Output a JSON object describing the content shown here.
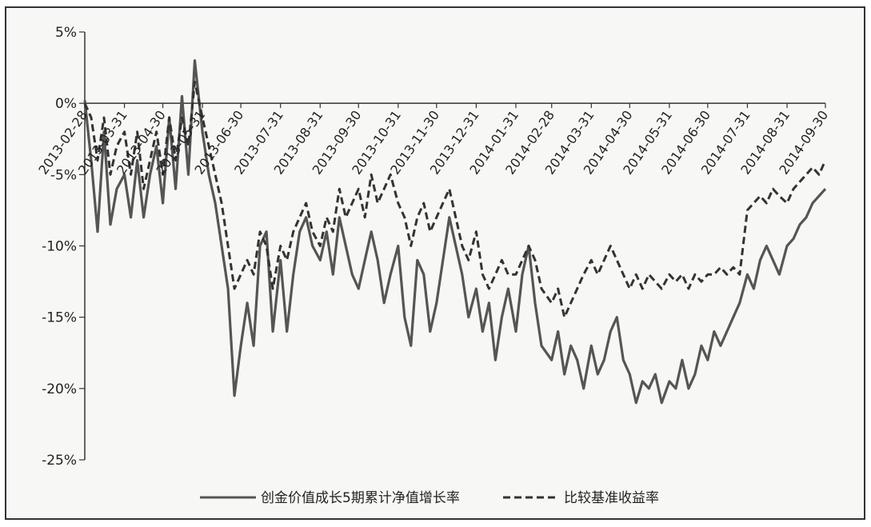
{
  "chart_data": {
    "type": "line",
    "title": "",
    "xlabel": "",
    "ylabel": "",
    "ylim": [
      -25,
      5
    ],
    "yticks": [
      "5%",
      "0%",
      "-5%",
      "-10%",
      "-15%",
      "-20%",
      "-25%"
    ],
    "ytick_values": [
      5,
      0,
      -5,
      -10,
      -15,
      -20,
      -25
    ],
    "xticks": [
      "2013-02-28",
      "2013-03-31",
      "2013-04-30",
      "2013-05-31",
      "2013-06-30",
      "2013-07-31",
      "2013-08-31",
      "2013-09-30",
      "2013-10-31",
      "2013-11-30",
      "2013-12-31",
      "2014-01-31",
      "2014-02-28",
      "2014-03-31",
      "2014-04-30",
      "2014-05-31",
      "2014-06-30",
      "2014-07-31",
      "2014-08-31",
      "2014-09-30"
    ],
    "grid": false,
    "legend_position": "bottom",
    "series": [
      {
        "name": "创金价值成长5期累计净值增长率",
        "style": "solid",
        "color": "#555555",
        "x": [
          "2013-02-28",
          "2013-03-05",
          "2013-03-10",
          "2013-03-15",
          "2013-03-20",
          "2013-03-25",
          "2013-03-31",
          "2013-04-05",
          "2013-04-10",
          "2013-04-15",
          "2013-04-20",
          "2013-04-25",
          "2013-04-30",
          "2013-05-05",
          "2013-05-10",
          "2013-05-15",
          "2013-05-20",
          "2013-05-25",
          "2013-05-31",
          "2013-06-05",
          "2013-06-10",
          "2013-06-15",
          "2013-06-20",
          "2013-06-25",
          "2013-06-30",
          "2013-07-05",
          "2013-07-10",
          "2013-07-15",
          "2013-07-20",
          "2013-07-25",
          "2013-07-31",
          "2013-08-05",
          "2013-08-10",
          "2013-08-15",
          "2013-08-20",
          "2013-08-25",
          "2013-08-31",
          "2013-09-05",
          "2013-09-10",
          "2013-09-15",
          "2013-09-20",
          "2013-09-25",
          "2013-09-30",
          "2013-10-05",
          "2013-10-10",
          "2013-10-15",
          "2013-10-20",
          "2013-10-25",
          "2013-10-31",
          "2013-11-05",
          "2013-11-10",
          "2013-11-15",
          "2013-11-20",
          "2013-11-25",
          "2013-11-30",
          "2013-12-05",
          "2013-12-10",
          "2013-12-15",
          "2013-12-20",
          "2013-12-25",
          "2013-12-31",
          "2014-01-05",
          "2014-01-10",
          "2014-01-15",
          "2014-01-20",
          "2014-01-25",
          "2014-01-31",
          "2014-02-05",
          "2014-02-10",
          "2014-02-15",
          "2014-02-20",
          "2014-02-28",
          "2014-03-05",
          "2014-03-10",
          "2014-03-15",
          "2014-03-20",
          "2014-03-25",
          "2014-03-31",
          "2014-04-05",
          "2014-04-10",
          "2014-04-15",
          "2014-04-20",
          "2014-04-25",
          "2014-04-30",
          "2014-05-05",
          "2014-05-10",
          "2014-05-15",
          "2014-05-20",
          "2014-05-25",
          "2014-05-31",
          "2014-06-05",
          "2014-06-10",
          "2014-06-15",
          "2014-06-20",
          "2014-06-25",
          "2014-06-30",
          "2014-07-05",
          "2014-07-10",
          "2014-07-15",
          "2014-07-20",
          "2014-07-25",
          "2014-07-31",
          "2014-08-05",
          "2014-08-10",
          "2014-08-15",
          "2014-08-20",
          "2014-08-25",
          "2014-08-31",
          "2014-09-05",
          "2014-09-10",
          "2014-09-15",
          "2014-09-20",
          "2014-09-25",
          "2014-09-30"
        ],
        "values": [
          0.2,
          -4.0,
          -9.0,
          -2.0,
          -8.5,
          -6.0,
          -5.0,
          -8.0,
          -4.0,
          -8.0,
          -5.0,
          -3.0,
          -7.0,
          -1.0,
          -6.0,
          0.5,
          -5.0,
          3.0,
          -2.0,
          -5.0,
          -7.0,
          -10.0,
          -13.0,
          -20.5,
          -17.0,
          -14.0,
          -17.0,
          -10.0,
          -9.0,
          -16.0,
          -11.0,
          -16.0,
          -12.0,
          -9.0,
          -8.0,
          -10.0,
          -11.0,
          -9.0,
          -12.0,
          -8.0,
          -10.0,
          -12.0,
          -13.0,
          -11.0,
          -9.0,
          -11.0,
          -14.0,
          -12.0,
          -10.0,
          -15.0,
          -17.0,
          -11.0,
          -12.0,
          -16.0,
          -14.0,
          -11.0,
          -8.0,
          -10.0,
          -12.0,
          -15.0,
          -13.0,
          -16.0,
          -14.0,
          -18.0,
          -15.0,
          -13.0,
          -16.0,
          -12.0,
          -10.0,
          -14.0,
          -17.0,
          -18.0,
          -16.0,
          -19.0,
          -17.0,
          -18.0,
          -20.0,
          -17.0,
          -19.0,
          -18.0,
          -16.0,
          -15.0,
          -18.0,
          -19.0,
          -21.0,
          -19.5,
          -20.0,
          -19.0,
          -21.0,
          -19.5,
          -20.0,
          -18.0,
          -20.0,
          -19.0,
          -17.0,
          -18.0,
          -16.0,
          -17.0,
          -16.0,
          -15.0,
          -14.0,
          -12.0,
          -13.0,
          -11.0,
          -10.0,
          -11.0,
          -12.0,
          -10.0,
          -9.5,
          -8.5,
          -8.0,
          -7.0,
          -6.5,
          -6.0
        ]
      },
      {
        "name": "比较基准收益率",
        "style": "dashed",
        "color": "#333333",
        "x": [
          "2013-02-28",
          "2013-03-05",
          "2013-03-10",
          "2013-03-15",
          "2013-03-20",
          "2013-03-25",
          "2013-03-31",
          "2013-04-05",
          "2013-04-10",
          "2013-04-15",
          "2013-04-20",
          "2013-04-25",
          "2013-04-30",
          "2013-05-05",
          "2013-05-10",
          "2013-05-15",
          "2013-05-20",
          "2013-05-25",
          "2013-05-31",
          "2013-06-05",
          "2013-06-10",
          "2013-06-15",
          "2013-06-20",
          "2013-06-25",
          "2013-06-30",
          "2013-07-05",
          "2013-07-10",
          "2013-07-15",
          "2013-07-20",
          "2013-07-25",
          "2013-07-31",
          "2013-08-05",
          "2013-08-10",
          "2013-08-15",
          "2013-08-20",
          "2013-08-25",
          "2013-08-31",
          "2013-09-05",
          "2013-09-10",
          "2013-09-15",
          "2013-09-20",
          "2013-09-25",
          "2013-09-30",
          "2013-10-05",
          "2013-10-10",
          "2013-10-15",
          "2013-10-20",
          "2013-10-25",
          "2013-10-31",
          "2013-11-05",
          "2013-11-10",
          "2013-11-15",
          "2013-11-20",
          "2013-11-25",
          "2013-11-30",
          "2013-12-05",
          "2013-12-10",
          "2013-12-15",
          "2013-12-20",
          "2013-12-25",
          "2013-12-31",
          "2014-01-05",
          "2014-01-10",
          "2014-01-15",
          "2014-01-20",
          "2014-01-25",
          "2014-01-31",
          "2014-02-05",
          "2014-02-10",
          "2014-02-15",
          "2014-02-20",
          "2014-02-28",
          "2014-03-05",
          "2014-03-10",
          "2014-03-15",
          "2014-03-20",
          "2014-03-25",
          "2014-03-31",
          "2014-04-05",
          "2014-04-10",
          "2014-04-15",
          "2014-04-20",
          "2014-04-25",
          "2014-04-30",
          "2014-05-05",
          "2014-05-10",
          "2014-05-15",
          "2014-05-20",
          "2014-05-25",
          "2014-05-31",
          "2014-06-05",
          "2014-06-10",
          "2014-06-15",
          "2014-06-20",
          "2014-06-25",
          "2014-06-30",
          "2014-07-05",
          "2014-07-10",
          "2014-07-15",
          "2014-07-20",
          "2014-07-25",
          "2014-07-31",
          "2014-08-05",
          "2014-08-10",
          "2014-08-15",
          "2014-08-20",
          "2014-08-25",
          "2014-08-31",
          "2014-09-05",
          "2014-09-10",
          "2014-09-15",
          "2014-09-20",
          "2014-09-25",
          "2014-09-30"
        ],
        "values": [
          0.0,
          -1.0,
          -4.0,
          -1.0,
          -5.0,
          -3.0,
          -2.0,
          -5.0,
          -2.0,
          -6.0,
          -4.0,
          -2.0,
          -5.0,
          -1.0,
          -4.0,
          -1.0,
          -3.0,
          1.5,
          -1.0,
          -3.0,
          -5.0,
          -7.0,
          -10.0,
          -13.0,
          -12.0,
          -11.0,
          -12.0,
          -9.0,
          -10.0,
          -13.0,
          -10.0,
          -11.0,
          -9.0,
          -8.0,
          -7.0,
          -9.0,
          -10.0,
          -8.0,
          -9.0,
          -6.0,
          -8.0,
          -7.0,
          -6.0,
          -8.0,
          -5.0,
          -7.0,
          -6.0,
          -5.0,
          -7.0,
          -8.0,
          -10.0,
          -8.0,
          -7.0,
          -9.0,
          -8.0,
          -7.0,
          -6.0,
          -8.0,
          -10.0,
          -11.0,
          -9.0,
          -12.0,
          -13.0,
          -12.0,
          -11.0,
          -12.0,
          -12.0,
          -11.0,
          -10.0,
          -11.0,
          -13.0,
          -14.0,
          -13.0,
          -15.0,
          -14.0,
          -13.0,
          -12.0,
          -11.0,
          -12.0,
          -11.0,
          -10.0,
          -11.0,
          -12.0,
          -13.0,
          -12.0,
          -13.0,
          -12.0,
          -12.5,
          -13.0,
          -12.0,
          -12.5,
          -12.0,
          -13.0,
          -12.0,
          -12.5,
          -12.0,
          -12.0,
          -11.5,
          -12.0,
          -11.5,
          -12.0,
          -7.5,
          -7.0,
          -6.5,
          -7.0,
          -6.0,
          -6.5,
          -7.0,
          -6.0,
          -5.5,
          -5.0,
          -4.5,
          -5.0,
          -4.0
        ]
      }
    ]
  }
}
